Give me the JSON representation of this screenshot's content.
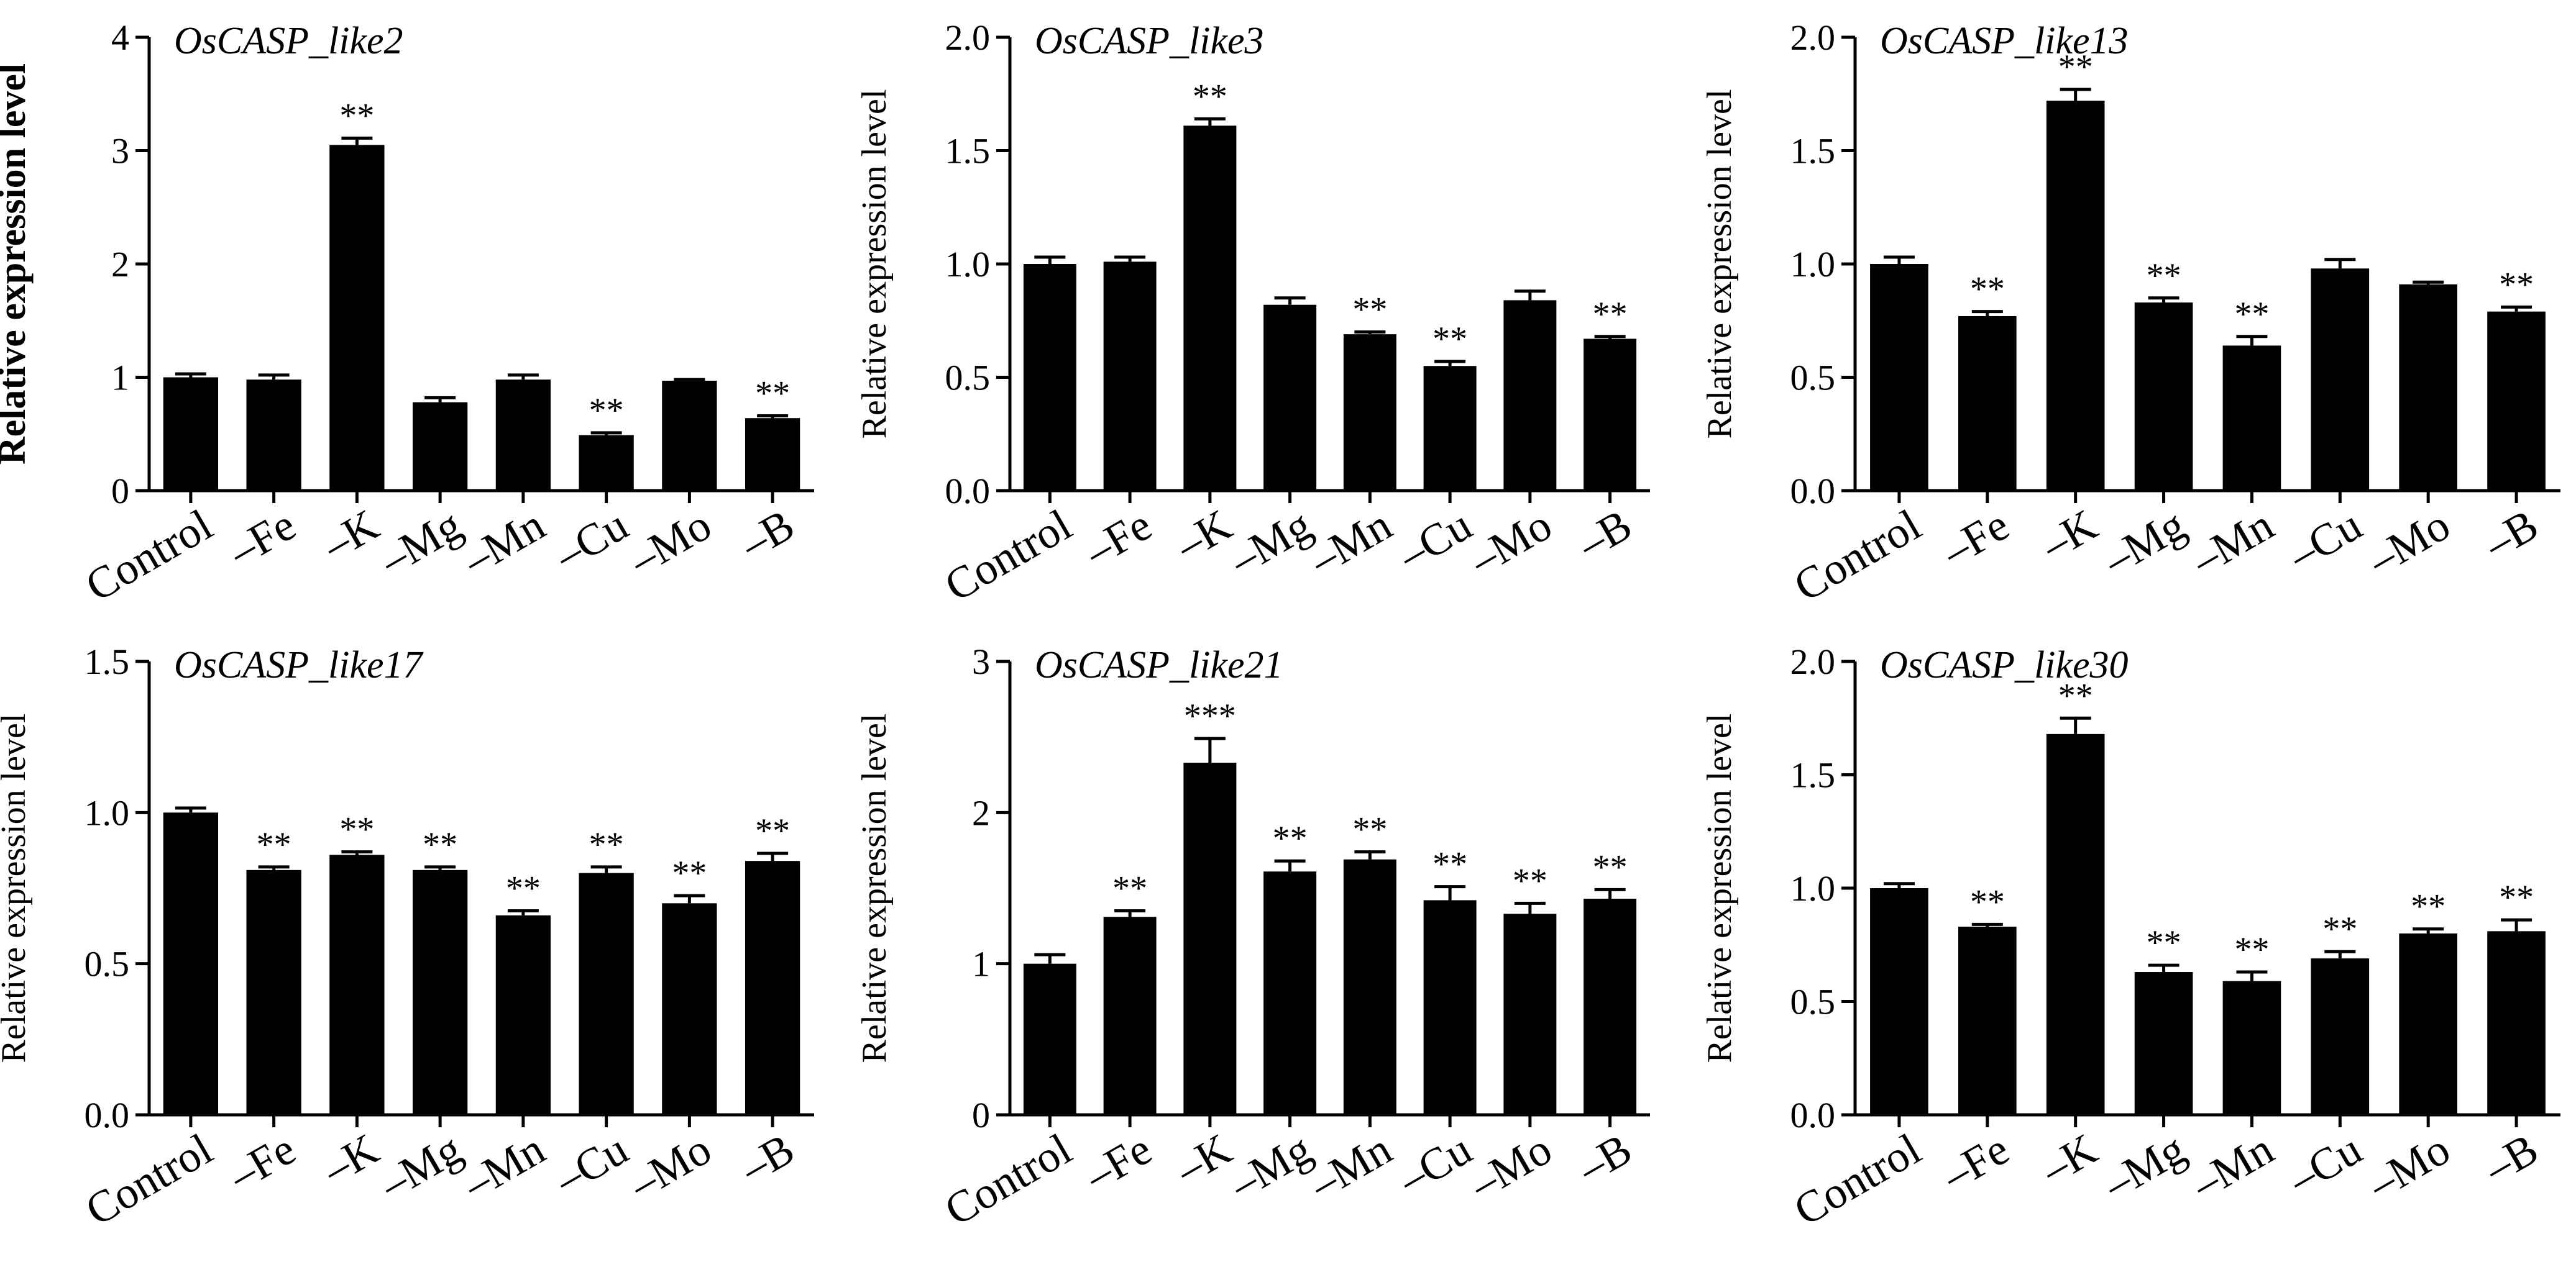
{
  "chart_data": [
    {
      "type": "bar",
      "title": "OsCASP_like2",
      "ylabel": "Relative expression level",
      "ylabel_bold": true,
      "categories": [
        "Control",
        "–Fe",
        "–K",
        "–Mg",
        "–Mn",
        "–Cu",
        "–Mo",
        "–B"
      ],
      "values": [
        1.0,
        0.98,
        3.05,
        0.78,
        0.98,
        0.49,
        0.97,
        0.64
      ],
      "errors": [
        0.03,
        0.04,
        0.06,
        0.04,
        0.04,
        0.02,
        0.01,
        0.02
      ],
      "significance": [
        "",
        "",
        "**",
        "",
        "",
        "**",
        "",
        "**"
      ],
      "ylim": [
        0,
        4
      ],
      "yticks": [
        "0",
        "1",
        "2",
        "3",
        "4"
      ]
    },
    {
      "type": "bar",
      "title": "OsCASP_like3",
      "ylabel": "Relative expression level",
      "ylabel_bold": false,
      "categories": [
        "Control",
        "–Fe",
        "–K",
        "–Mg",
        "–Mn",
        "–Cu",
        "–Mo",
        "–B"
      ],
      "values": [
        1.0,
        1.01,
        1.61,
        0.82,
        0.69,
        0.55,
        0.84,
        0.67
      ],
      "errors": [
        0.03,
        0.02,
        0.03,
        0.03,
        0.01,
        0.02,
        0.04,
        0.01
      ],
      "significance": [
        "",
        "",
        "**",
        "",
        "**",
        "**",
        "",
        "**"
      ],
      "ylim": [
        0,
        2
      ],
      "yticks": [
        "0.0",
        "0.5",
        "1.0",
        "1.5",
        "2.0"
      ]
    },
    {
      "type": "bar",
      "title": "OsCASP_like13",
      "ylabel": "Relative expression level",
      "ylabel_bold": false,
      "categories": [
        "Control",
        "–Fe",
        "–K",
        "–Mg",
        "–Mn",
        "–Cu",
        "–Mo",
        "–B"
      ],
      "values": [
        1.0,
        0.77,
        1.72,
        0.83,
        0.64,
        0.98,
        0.91,
        0.79
      ],
      "errors": [
        0.03,
        0.02,
        0.05,
        0.02,
        0.04,
        0.04,
        0.01,
        0.02
      ],
      "significance": [
        "",
        "**",
        "**",
        "**",
        "**",
        "",
        "",
        "**"
      ],
      "ylim": [
        0,
        2
      ],
      "yticks": [
        "0.0",
        "0.5",
        "1.0",
        "1.5",
        "2.0"
      ]
    },
    {
      "type": "bar",
      "title": "OsCASP_like17",
      "ylabel": "Relative expression level",
      "ylabel_bold": false,
      "categories": [
        "Control",
        "–Fe",
        "–K",
        "–Mg",
        "–Mn",
        "–Cu",
        "–Mo",
        "–B"
      ],
      "values": [
        1.0,
        0.81,
        0.86,
        0.81,
        0.66,
        0.8,
        0.7,
        0.84
      ],
      "errors": [
        0.015,
        0.01,
        0.01,
        0.01,
        0.015,
        0.02,
        0.025,
        0.025
      ],
      "significance": [
        "",
        "**",
        "**",
        "**",
        "**",
        "**",
        "**",
        "**"
      ],
      "ylim": [
        0,
        1.5
      ],
      "yticks": [
        "0.0",
        "0.5",
        "1.0",
        "1.5"
      ]
    },
    {
      "type": "bar",
      "title": "OsCASP_like21",
      "ylabel": "Relative expression level",
      "ylabel_bold": false,
      "categories": [
        "Control",
        "–Fe",
        "–K",
        "–Mg",
        "–Mn",
        "–Cu",
        "–Mo",
        "–B"
      ],
      "values": [
        1.0,
        1.31,
        2.33,
        1.61,
        1.69,
        1.42,
        1.33,
        1.43
      ],
      "errors": [
        0.06,
        0.04,
        0.16,
        0.07,
        0.05,
        0.09,
        0.07,
        0.06
      ],
      "significance": [
        "",
        "**",
        "***",
        "**",
        "**",
        "**",
        "**",
        "**"
      ],
      "ylim": [
        0,
        3
      ],
      "yticks": [
        "0",
        "1",
        "2",
        "3"
      ]
    },
    {
      "type": "bar",
      "title": "OsCASP_like30",
      "ylabel": "Relative expression level",
      "ylabel_bold": false,
      "categories": [
        "Control",
        "–Fe",
        "–K",
        "–Mg",
        "–Mn",
        "–Cu",
        "–Mo",
        "–B"
      ],
      "values": [
        1.0,
        0.83,
        1.68,
        0.63,
        0.59,
        0.69,
        0.8,
        0.81
      ],
      "errors": [
        0.02,
        0.01,
        0.07,
        0.03,
        0.04,
        0.03,
        0.02,
        0.05
      ],
      "significance": [
        "",
        "**",
        "**",
        "**",
        "**",
        "**",
        "**",
        "**"
      ],
      "ylim": [
        0,
        2
      ],
      "yticks": [
        "0.0",
        "0.5",
        "1.0",
        "1.5",
        "2.0"
      ]
    }
  ]
}
